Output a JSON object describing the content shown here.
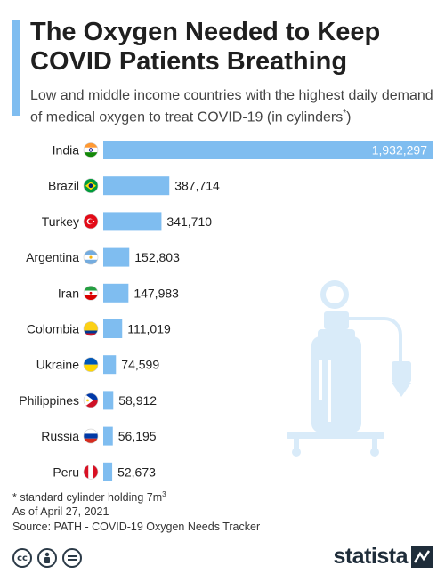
{
  "header": {
    "title": "The Oxygen Needed to Keep COVID Patients Breathing",
    "subtitle": "Low and middle income countries with the highest daily demand of medical oxygen to treat COVID-19 (in cylinders",
    "subtitle_mark": "*",
    "subtitle_end": ")"
  },
  "chart_data": {
    "type": "bar",
    "orientation": "horizontal",
    "categories": [
      "India",
      "Brazil",
      "Turkey",
      "Argentina",
      "Iran",
      "Colombia",
      "Ukraine",
      "Philippines",
      "Russia",
      "Peru"
    ],
    "values": [
      1932297,
      387714,
      341710,
      152803,
      147983,
      111019,
      74599,
      58912,
      56195,
      52673
    ],
    "value_labels": [
      "1,932,297",
      "387,714",
      "341,710",
      "152,803",
      "147,983",
      "111,019",
      "74,599",
      "58,912",
      "56,195",
      "52,673"
    ],
    "bar_color": "#7fbdf0",
    "grid": false,
    "flag_icons": [
      "india-flag-icon",
      "brazil-flag-icon",
      "turkey-flag-icon",
      "argentina-flag-icon",
      "iran-flag-icon",
      "colombia-flag-icon",
      "ukraine-flag-icon",
      "philippines-flag-icon",
      "russia-flag-icon",
      "peru-flag-icon"
    ],
    "decoration": "oxygen-cylinder-illustration"
  },
  "notes": {
    "footnote_text": "* standard cylinder holding 7m",
    "footnote_sup": "3",
    "date": "As of April 27, 2021",
    "source": "Source: PATH - COVID-19 Oxygen Needs Tracker"
  },
  "footer": {
    "brand": "statista",
    "license_icons": [
      "cc-icon",
      "by-icon",
      "nd-icon"
    ]
  }
}
